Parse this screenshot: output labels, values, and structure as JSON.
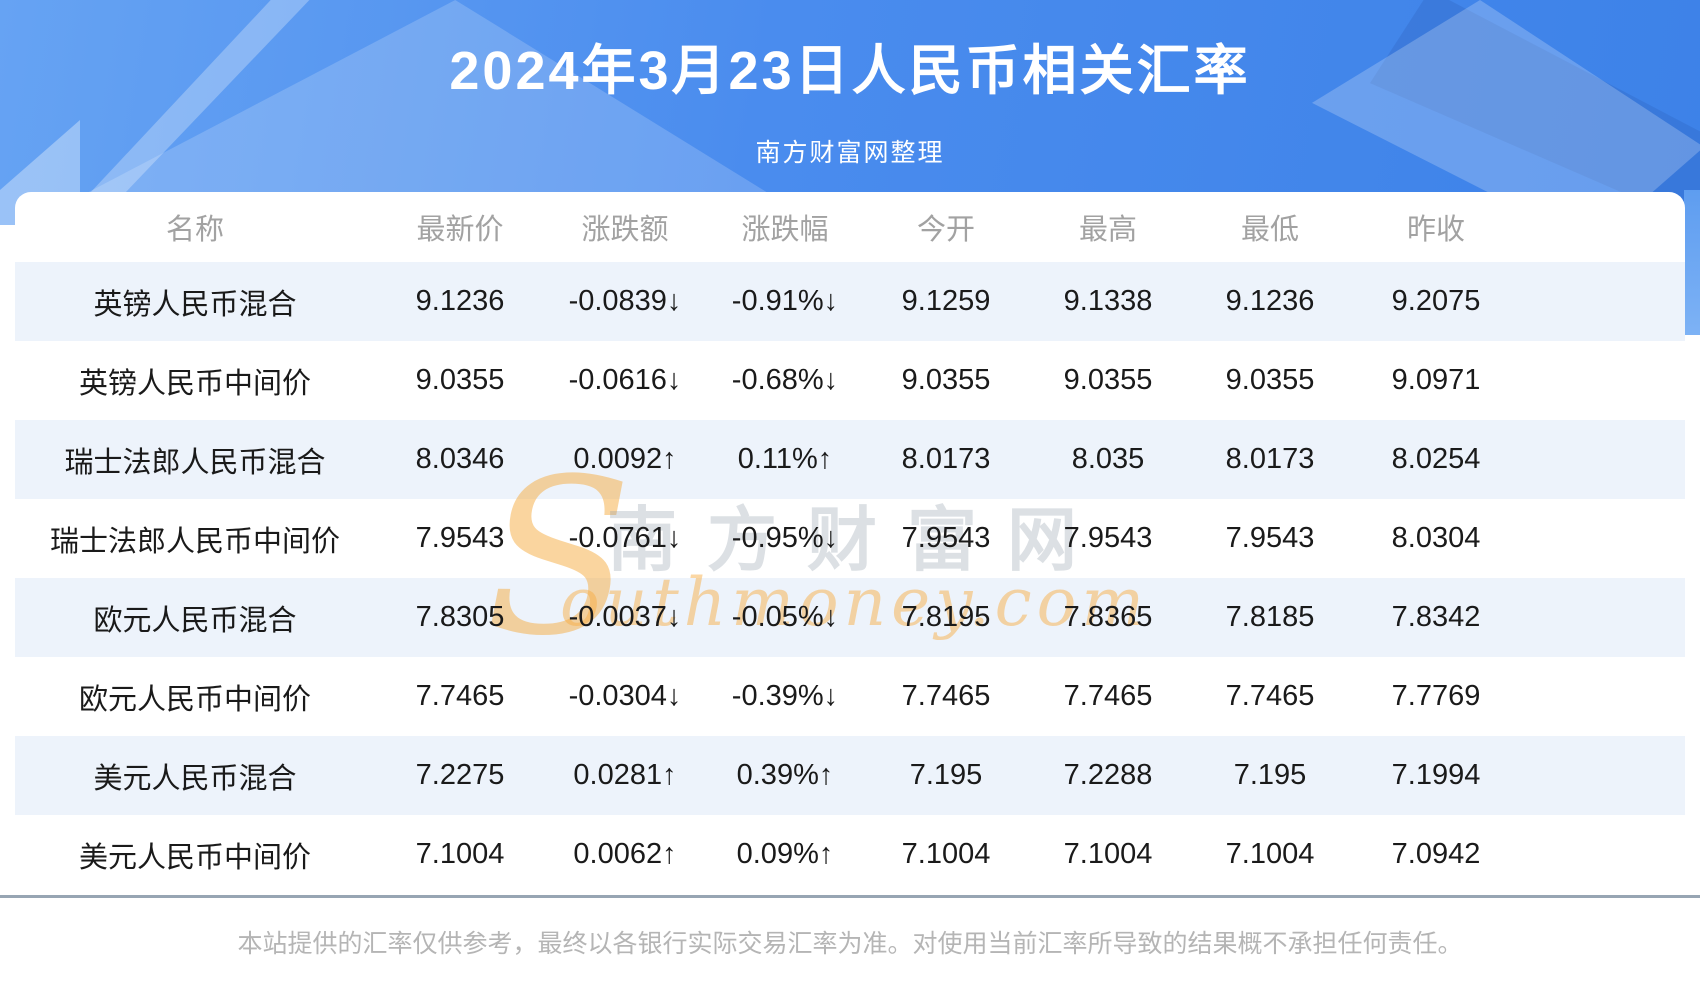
{
  "header": {
    "title": "2024年3月23日人民币相关汇率",
    "subtitle": "南方财富网整理"
  },
  "watermark": {
    "s": "S",
    "cn": "南方财富网",
    "en": "outhmoney.com"
  },
  "table": {
    "columns": [
      "名称",
      "最新价",
      "涨跌额",
      "涨跌幅",
      "今开",
      "最高",
      "最低",
      "昨收"
    ],
    "rows": [
      {
        "name": "英镑人民币混合",
        "latest": "9.1236",
        "change": "-0.0839↓",
        "pct": "-0.91%↓",
        "open": "9.1259",
        "high": "9.1338",
        "low": "9.1236",
        "prev": "9.2075",
        "trend": "down"
      },
      {
        "name": "英镑人民币中间价",
        "latest": "9.0355",
        "change": "-0.0616↓",
        "pct": "-0.68%↓",
        "open": "9.0355",
        "high": "9.0355",
        "low": "9.0355",
        "prev": "9.0971",
        "trend": "down"
      },
      {
        "name": "瑞士法郎人民币混合",
        "latest": "8.0346",
        "change": "0.0092↑",
        "pct": "0.11%↑",
        "open": "8.0173",
        "high": "8.035",
        "low": "8.0173",
        "prev": "8.0254",
        "trend": "up"
      },
      {
        "name": "瑞士法郎人民币中间价",
        "latest": "7.9543",
        "change": "-0.0761↓",
        "pct": "-0.95%↓",
        "open": "7.9543",
        "high": "7.9543",
        "low": "7.9543",
        "prev": "8.0304",
        "trend": "down"
      },
      {
        "name": "欧元人民币混合",
        "latest": "7.8305",
        "change": "-0.0037↓",
        "pct": "-0.05%↓",
        "open": "7.8195",
        "high": "7.8365",
        "low": "7.8185",
        "prev": "7.8342",
        "trend": "down"
      },
      {
        "name": "欧元人民币中间价",
        "latest": "7.7465",
        "change": "-0.0304↓",
        "pct": "-0.39%↓",
        "open": "7.7465",
        "high": "7.7465",
        "low": "7.7465",
        "prev": "7.7769",
        "trend": "down"
      },
      {
        "name": "美元人民币混合",
        "latest": "7.2275",
        "change": "0.0281↑",
        "pct": "0.39%↑",
        "open": "7.195",
        "high": "7.2288",
        "low": "7.195",
        "prev": "7.1994",
        "trend": "up"
      },
      {
        "name": "美元人民币中间价",
        "latest": "7.1004",
        "change": "0.0062↑",
        "pct": "0.09%↑",
        "open": "7.1004",
        "high": "7.1004",
        "low": "7.1004",
        "prev": "7.0942",
        "trend": "up"
      }
    ]
  },
  "footer": {
    "disclaimer": "本站提供的汇率仅供参考，最终以各银行实际交易汇率为准。对使用当前汇率所导致的结果概不承担任何责任。"
  },
  "theme": {
    "up_color": "#f40000",
    "down_color": "#009900",
    "accent_blue": "#4a8cee",
    "band_color": "#edf3fb",
    "divider_color": "#97a5b3"
  }
}
